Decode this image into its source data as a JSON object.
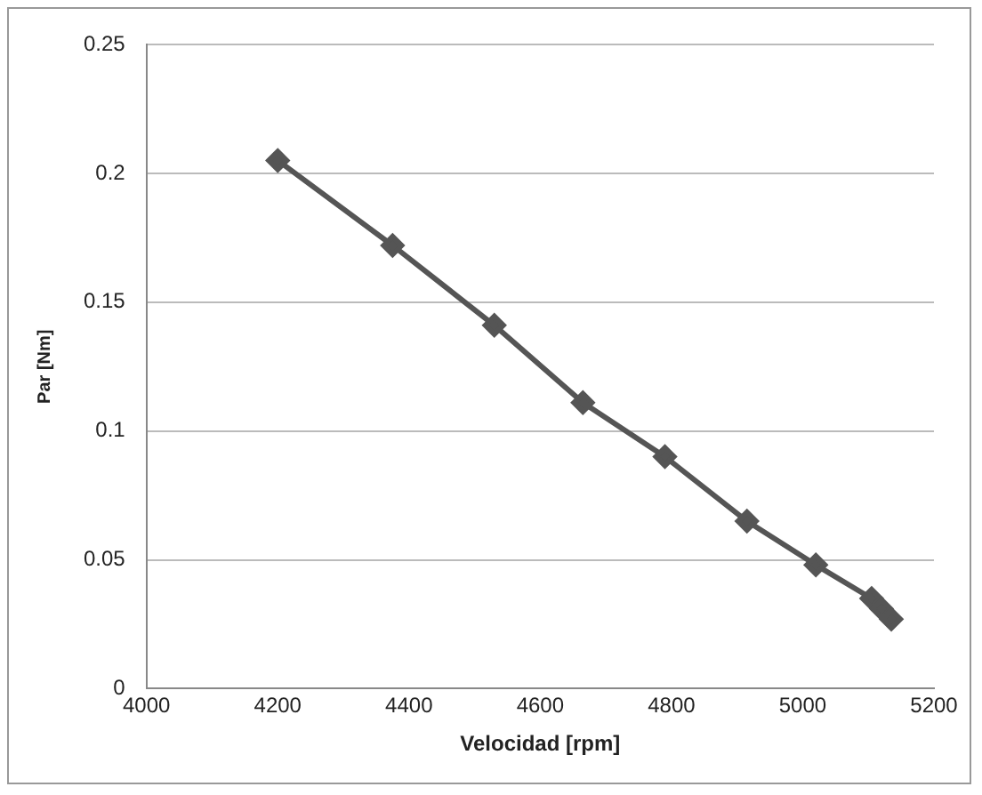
{
  "chart_data": {
    "type": "line",
    "xlabel": "Velocidad [rpm]",
    "ylabel": "Par [Nm]",
    "x": [
      4200,
      4375,
      4530,
      4665,
      4790,
      4915,
      5020,
      5105,
      5120,
      5135
    ],
    "series": [
      {
        "color": "#555555",
        "values": [
          0.205,
          0.172,
          0.141,
          0.111,
          0.09,
          0.065,
          0.048,
          0.035,
          0.031,
          0.027
        ]
      }
    ],
    "xlim": [
      4000,
      5200
    ],
    "xticks": [
      4000,
      4200,
      4400,
      4600,
      4800,
      5000,
      5200
    ],
    "ylim": [
      0,
      0.25
    ],
    "yticks": [
      0,
      0.05,
      0.1,
      0.15,
      0.2,
      0.25
    ],
    "grid": "y",
    "legend": false,
    "marker": "diamond",
    "line_style": "solid"
  }
}
